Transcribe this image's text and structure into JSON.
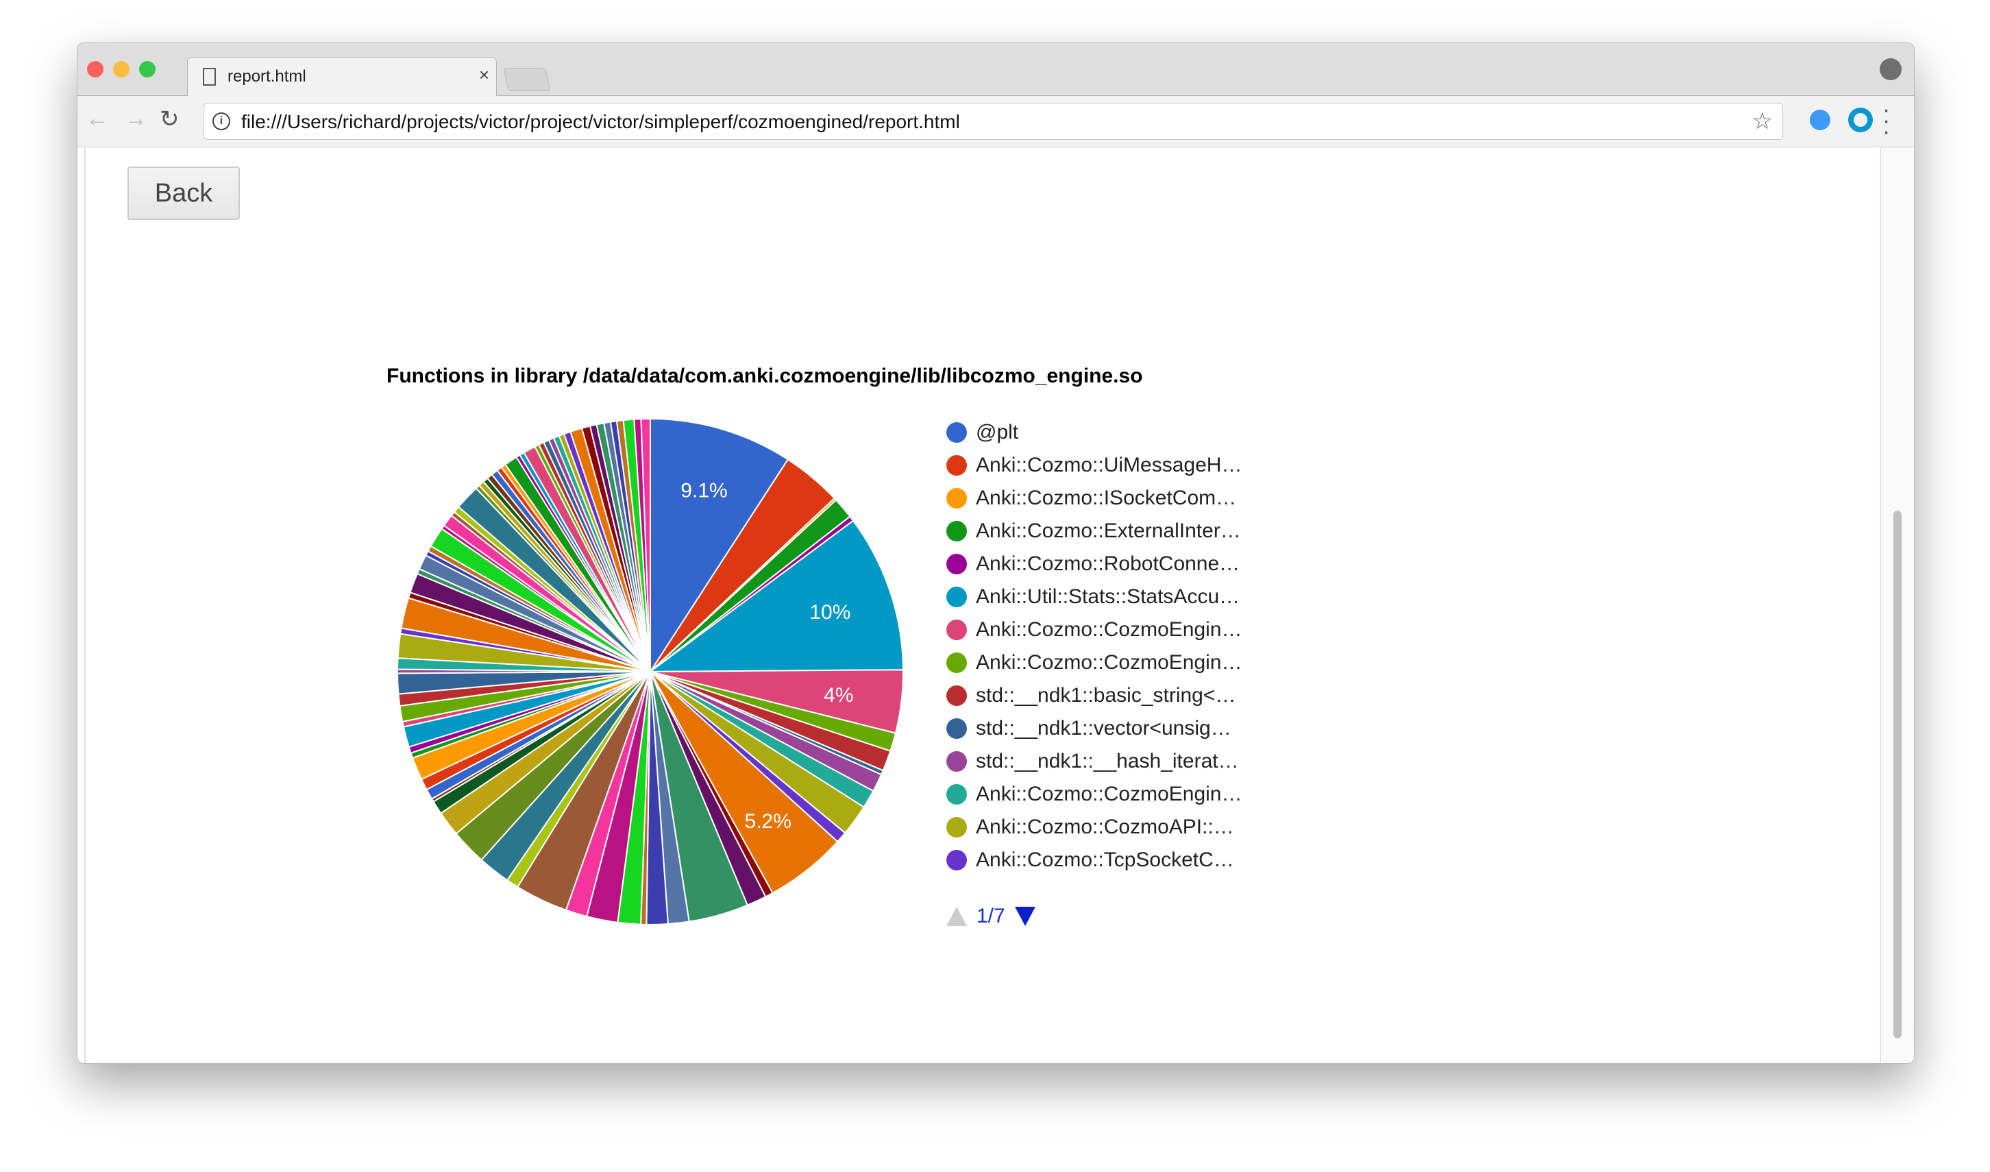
{
  "browser": {
    "tab_title": "report.html",
    "tab_close": "×",
    "url": "file:///Users/richard/projects/victor/project/victor/simpleperf/cozmoengined/report.html"
  },
  "page": {
    "back_label": "Back"
  },
  "chart_data": {
    "type": "pie",
    "title": "Functions in library /data/data/com.anki.cozmoengine/lib/libcozmo_engine.so",
    "palette": [
      "#3366cc",
      "#dc3912",
      "#ff9900",
      "#109618",
      "#990099",
      "#0099c6",
      "#dd4477",
      "#66aa00",
      "#b82e2e",
      "#316395",
      "#994499",
      "#22aa99",
      "#aaaa11",
      "#6633cc",
      "#e67300",
      "#8b0707",
      "#651067",
      "#329262",
      "#5574a6",
      "#3b3eac",
      "#b77322",
      "#16d620",
      "#b91383",
      "#f4359e",
      "#9c5935",
      "#a9c413",
      "#2a778d",
      "#668d1c",
      "#bea413",
      "#0c5922",
      "#743411"
    ],
    "values": [
      9.1,
      3.8,
      0.15,
      1.35,
      0.33,
      10,
      4,
      1.17,
      1.3,
      0.28,
      1.14,
      1.17,
      2,
      0.72,
      5.2,
      0.5,
      1.25,
      3.8,
      1.33,
      1.35,
      0.36,
      1.45,
      1.97,
      1.36,
      3.36,
      0.78,
      2.05,
      2.28,
      1.6,
      0.86,
      0.2,
      0.67,
      0.72,
      1.44,
      0.33,
      0.4,
      1.3,
      0.33,
      1,
      0.75,
      1.3,
      0.25,
      0.7,
      1.53,
      0.36,
      1.94,
      0.36,
      1.25,
      0.33,
      0.94,
      0.3,
      0.36,
      1.28,
      0.25,
      0.78,
      0.28,
      0.42,
      1.6,
      0.26,
      0.36,
      0.33,
      0.36,
      0.42,
      0.33,
      0.3,
      0.83,
      0.25,
      0.3,
      0.78,
      0.28,
      0.33,
      0.36,
      0.33,
      0.36,
      0.33,
      0.42,
      0.75,
      0.53,
      0.42,
      0.47,
      0.42,
      0.39,
      0.42,
      0.67,
      0.44,
      0.58
    ],
    "slice_labels": {
      "0": "9.1%",
      "5": "10%",
      "6": "4%",
      "14": "5.2%"
    },
    "legend": {
      "placement": "right",
      "items": [
        "@plt",
        "Anki::Cozmo::UiMessageH…",
        "Anki::Cozmo::ISocketCom…",
        "Anki::Cozmo::ExternalInter…",
        "Anki::Cozmo::RobotConne…",
        "Anki::Util::Stats::StatsAccu…",
        "Anki::Cozmo::CozmoEngin…",
        "Anki::Cozmo::CozmoEngin…",
        "std::__ndk1::basic_string<…",
        "std::__ndk1::vector<unsig…",
        "std::__ndk1::__hash_iterat…",
        "Anki::Cozmo::CozmoEngin…",
        "Anki::Cozmo::CozmoAPI::…",
        "Anki::Cozmo::TcpSocketC…"
      ],
      "page": "1/7"
    }
  }
}
